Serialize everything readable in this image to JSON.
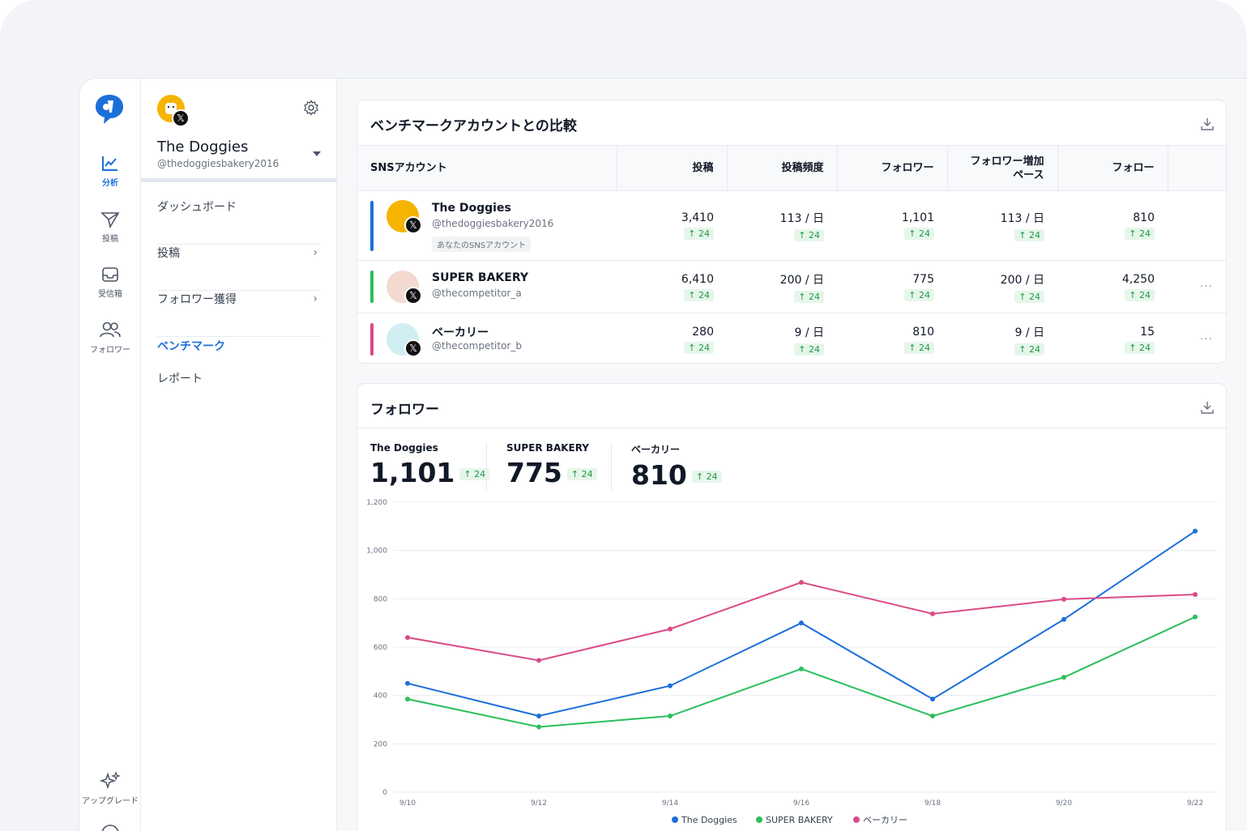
{
  "rail": {
    "items": [
      {
        "label": "分析",
        "icon": "chart-icon"
      },
      {
        "label": "投稿",
        "icon": "send-icon"
      },
      {
        "label": "受信箱",
        "icon": "inbox-icon"
      },
      {
        "label": "フォロワー",
        "icon": "users-icon"
      }
    ],
    "upgrade_label": "アップグレード"
  },
  "account": {
    "name": "The Doggies",
    "handle": "@thedoggiesbakery2016"
  },
  "subnav": {
    "dashboard": "ダッシュボード",
    "posts": "投稿",
    "followers": "フォロワー獲得",
    "benchmark": "ベンチマーク",
    "report": "レポート"
  },
  "benchmark": {
    "title": "ベンチマークアカウントとの比較",
    "headers": [
      "SNSアカウント",
      "投稿",
      "投稿頻度",
      "フォロワー",
      "フォロワー増加ペース",
      "フォロー"
    ],
    "own_tag": "あなたのSNSアカウント",
    "rows": [
      {
        "name": "The Doggies",
        "handle": "@thedoggiesbakery2016",
        "color": "#1d6fd8",
        "posts": "3,410",
        "freq": "113 / 日",
        "followers": "1,101",
        "pace": "113 / 日",
        "follow": "810",
        "delta": "24"
      },
      {
        "name": "SUPER BAKERY",
        "handle": "@thecompetitor_a",
        "color": "#2bbf5b",
        "posts": "6,410",
        "freq": "200 / 日",
        "followers": "775",
        "pace": "200 / 日",
        "follow": "4,250",
        "delta": "24"
      },
      {
        "name": "ベーカリー",
        "handle": "@thecompetitor_b",
        "color": "#d94b86",
        "posts": "280",
        "freq": "9 / 日",
        "followers": "810",
        "pace": "9 / 日",
        "follow": "15",
        "delta": "24"
      }
    ]
  },
  "followers_card": {
    "title": "フォロワー",
    "stats": [
      {
        "name": "The Doggies",
        "value": "1,101",
        "delta": "↑ 24"
      },
      {
        "name": "SUPER BAKERY",
        "value": "775",
        "delta": "↑ 24"
      },
      {
        "name": "ベーカリー",
        "value": "810",
        "delta": "↑ 24"
      }
    ]
  },
  "chart_data": {
    "type": "line",
    "x": [
      "9/10",
      "9/12",
      "9/14",
      "9/16",
      "9/18",
      "9/20",
      "9/22"
    ],
    "ylim": [
      0,
      1200
    ],
    "yticks": [
      0,
      200,
      400,
      600,
      800,
      1000,
      1200
    ],
    "ytick_labels": [
      "0",
      "200",
      "400",
      "600",
      "800",
      "1,000",
      "1,200"
    ],
    "grid": true,
    "legend_position": "bottom",
    "series": [
      {
        "name": "The Doggies",
        "color": "#1d6fd8",
        "values": [
          450,
          315,
          440,
          700,
          385,
          715,
          1080
        ]
      },
      {
        "name": "SUPER BAKERY",
        "color": "#2bbf5b",
        "values": [
          385,
          270,
          315,
          510,
          315,
          475,
          725
        ]
      },
      {
        "name": "ベーカリー",
        "color": "#d94b86",
        "values": [
          640,
          545,
          675,
          868,
          738,
          798,
          818
        ]
      }
    ]
  }
}
